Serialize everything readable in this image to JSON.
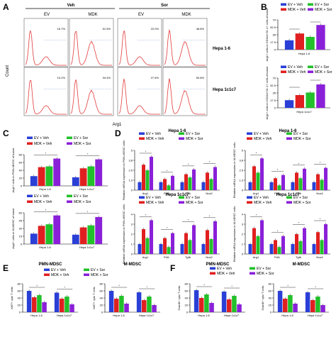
{
  "colors": {
    "ev_veh": "#2a3fd6",
    "mdk_veh": "#e02020",
    "ev_sor": "#22c02a",
    "mdk_sor": "#8a20d8",
    "flow": "#e23a3a"
  },
  "panels": [
    "A",
    "B",
    "C",
    "D",
    "E",
    "F"
  ],
  "panelA": {
    "col_groups": [
      "Veh",
      "Sor"
    ],
    "col_labels": [
      "EV",
      "MDK",
      "EV",
      "MDK"
    ],
    "row_labels": [
      "Hepa 1-6",
      "Hepa 1c1c7"
    ],
    "ylabel": "Count",
    "xlabel": "Arg1",
    "pcts": [
      [
        "16.7%",
        "51.5%",
        "22.0%",
        "48.8%"
      ],
      [
        "10.2%",
        "34.4%",
        "27.6%",
        "50.8%"
      ]
    ]
  },
  "legend": [
    "EV + Veh",
    "EV + Sor",
    "MDK + Veh",
    "MDK + Sor"
  ],
  "legend_short": [
    "EV+Veh",
    "EV+Sor",
    "MDK+Veh",
    "MDK+Sor"
  ],
  "chart_data": [
    {
      "id": "B1",
      "type": "bar",
      "panel": "B",
      "ylabel": "Arg1+ cells in CD11b+Gr-1+ cells of tumor",
      "xlabel": "Hepa 1-6",
      "series": [
        "EV + Veh",
        "MDK + Veh",
        "EV + Sor",
        "MDK + Sor"
      ],
      "values": [
        22,
        38,
        30,
        58
      ],
      "ylim": [
        0,
        70
      ]
    },
    {
      "id": "B2",
      "type": "bar",
      "panel": "B",
      "ylabel": "Arg1+ cells in CD11b+Gr-1+ cells of tumor",
      "xlabel": "Hepa 1c1c7",
      "series": [
        "EV + Veh",
        "MDK + Veh",
        "EV + Sor",
        "MDK + Sor"
      ],
      "values": [
        18,
        30,
        36,
        55
      ],
      "ylim": [
        0,
        70
      ]
    },
    {
      "id": "C1",
      "type": "bar",
      "panel": "C",
      "ylabel": "Arg1+ cells in PMN-MDSC of tumor",
      "categories": [
        "Hepa 1-6",
        "Hepa 1c1c7"
      ],
      "series": [
        "EV + Veh",
        "MDK + Veh",
        "EV + Sor",
        "MDK + Sor"
      ],
      "values": [
        [
          25,
          48,
          50,
          70
        ],
        [
          22,
          45,
          50,
          68
        ]
      ],
      "ylim": [
        0,
        80
      ]
    },
    {
      "id": "C2",
      "type": "bar",
      "panel": "C",
      "ylabel": "Arg1+ cells in M-MDSC of tumor",
      "categories": [
        "Hepa 1-6",
        "Hepa 1c1c7"
      ],
      "series": [
        "EV + Veh",
        "MDK + Veh",
        "EV + Sor",
        "MDK + Sor"
      ],
      "values": [
        [
          20,
          35,
          38,
          55
        ],
        [
          18,
          32,
          36,
          52
        ]
      ],
      "ylim": [
        0,
        60
      ]
    },
    {
      "id": "D1",
      "type": "bar",
      "panel": "D",
      "title": "Hepa 1-6",
      "ylabel": "Relative mRNA expression in PMN-MDSC cells",
      "categories": [
        "Arg1",
        "Pdl1",
        "Tgfb",
        "Nos2"
      ],
      "series": [
        "EV + Veh",
        "MDK + Veh",
        "EV + Sor",
        "MDK + Sor"
      ],
      "values": [
        [
          1,
          3.2,
          2.5,
          4.2
        ],
        [
          1,
          1.4,
          0.6,
          1.8
        ],
        [
          1,
          2.0,
          1.6,
          2.6
        ],
        [
          1,
          2.2,
          1.4,
          2.9
        ]
      ],
      "ylim": [
        0,
        5
      ]
    },
    {
      "id": "D2",
      "type": "bar",
      "panel": "D",
      "title": "Hepa 1-6",
      "ylabel": "Relative mRNA expression in M-MDSC cells",
      "categories": [
        "Arg1",
        "Pdl1",
        "Tgfb",
        "Nos2"
      ],
      "series": [
        "EV + Veh",
        "MDK + Veh",
        "EV + Sor",
        "MDK + Sor"
      ],
      "values": [
        [
          1,
          3.0,
          2.2,
          4.0
        ],
        [
          1,
          1.5,
          0.6,
          1.9
        ],
        [
          1,
          2.2,
          1.5,
          2.7
        ],
        [
          1,
          2.0,
          1.3,
          2.8
        ]
      ],
      "ylim": [
        0,
        5
      ]
    },
    {
      "id": "D3",
      "type": "bar",
      "panel": "D",
      "title": "Hepa 1c1c7",
      "ylabel": "Relative mRNA expression in PMN-MDSC cells",
      "categories": [
        "Arg1",
        "Pdl1",
        "Tgfb",
        "Nos2"
      ],
      "series": [
        "EV + Veh",
        "MDK + Veh",
        "EV + Sor",
        "MDK + Sor"
      ],
      "values": [
        [
          1,
          2.5,
          1.6,
          3.4
        ],
        [
          1,
          1.6,
          0.7,
          2.1
        ],
        [
          1,
          2.1,
          1.4,
          2.9
        ],
        [
          1,
          2.4,
          1.5,
          3.3
        ]
      ],
      "ylim": [
        0,
        4
      ]
    },
    {
      "id": "D4",
      "type": "bar",
      "panel": "D",
      "title": "Hepa 1c1c7",
      "ylabel": "Relative mRNA expression in M-MDSC cells",
      "categories": [
        "Arg1",
        "Pdl1",
        "Tgfb",
        "Nos2"
      ],
      "series": [
        "EV + Veh",
        "MDK + Veh",
        "EV + Sor",
        "MDK + Sor"
      ],
      "values": [
        [
          1,
          2.6,
          1.8,
          3.4
        ],
        [
          1,
          1.4,
          0.7,
          1.8
        ],
        [
          1,
          2.0,
          1.3,
          2.6
        ],
        [
          1,
          2.2,
          1.4,
          3.0
        ]
      ],
      "ylim": [
        0,
        4
      ]
    },
    {
      "id": "E1",
      "type": "bar",
      "panel": "E",
      "title": "PMN-MDSC",
      "ylabel": "Ki67+ cyto T cells",
      "categories": [
        "Hepa 1-6",
        "Hepa 1c1c7"
      ],
      "series": [
        "EV + Veh",
        "MDK + Veh",
        "EV + Sor",
        "MDK + Sor"
      ],
      "values": [
        [
          60,
          42,
          48,
          28
        ],
        [
          55,
          38,
          44,
          22
        ]
      ],
      "ylim": [
        0,
        80
      ]
    },
    {
      "id": "E2",
      "type": "bar",
      "panel": "E",
      "title": "M-MDSC",
      "ylabel": "Ki67+ cyto T cells",
      "categories": [
        "Hepa 1-6",
        "Hepa 1c1c7"
      ],
      "series": [
        "EV + Veh",
        "MDK + Veh",
        "EV + Sor",
        "MDK + Sor"
      ],
      "values": [
        [
          60,
          38,
          46,
          24
        ],
        [
          56,
          34,
          44,
          20
        ]
      ],
      "ylim": [
        0,
        80
      ]
    },
    {
      "id": "F1",
      "type": "bar",
      "panel": "F",
      "title": "PMN-MDSC",
      "ylabel": "GranB+ cyto T cells",
      "categories": [
        "Hepa 1-6",
        "Hepa 1c1c7"
      ],
      "series": [
        "EV + Veh",
        "MDK + Veh",
        "EV + Sor",
        "MDK + Sor"
      ],
      "values": [
        [
          62,
          40,
          50,
          26
        ],
        [
          58,
          36,
          46,
          22
        ]
      ],
      "ylim": [
        0,
        80
      ]
    },
    {
      "id": "F2",
      "type": "bar",
      "panel": "F",
      "title": "M-MDSC",
      "ylabel": "GranB+ cyto T cells",
      "categories": [
        "Hepa 1-6",
        "Hepa 1c1c7"
      ],
      "series": [
        "EV + Veh",
        "MDK + Veh",
        "EV + Sor",
        "MDK + Sor"
      ],
      "values": [
        [
          60,
          38,
          48,
          24
        ],
        [
          56,
          34,
          44,
          20
        ]
      ],
      "ylim": [
        0,
        80
      ]
    }
  ]
}
